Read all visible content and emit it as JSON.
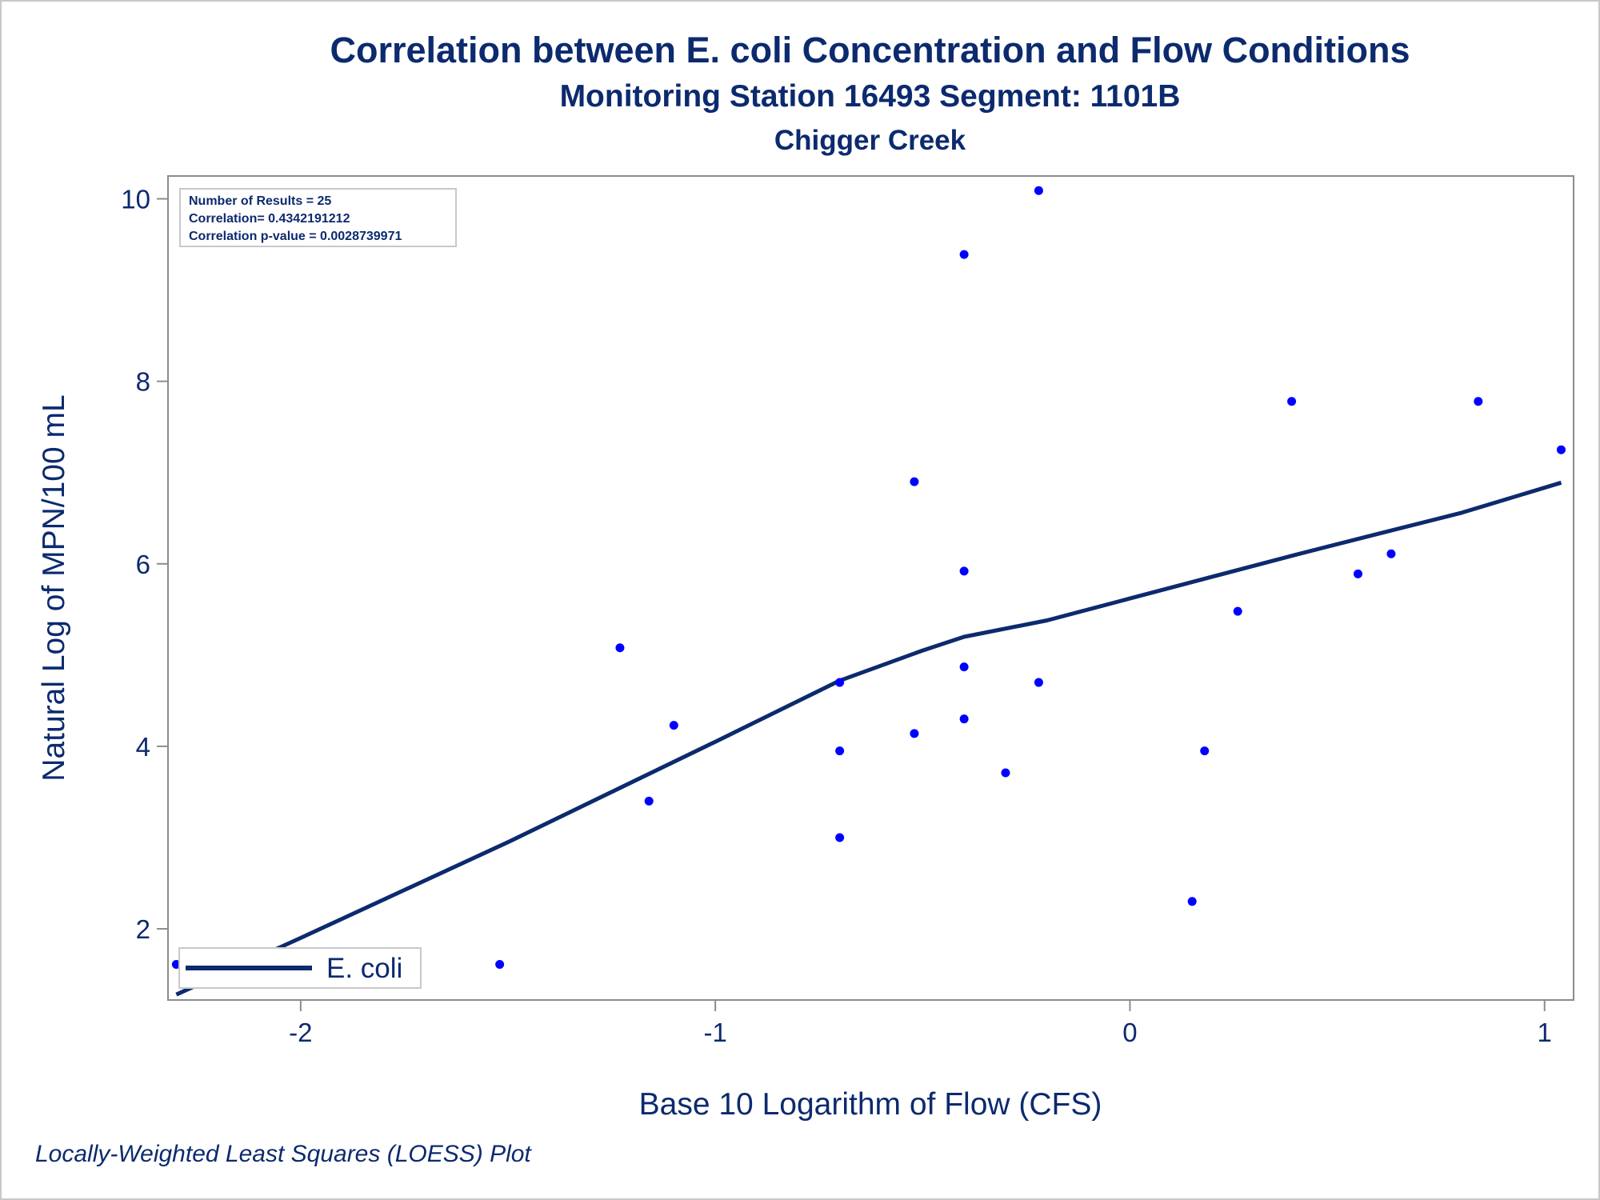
{
  "titles": {
    "title": "Correlation between E. coli Concentration and Flow Conditions",
    "subtitle": "Monitoring Station 16493 Segment: 1101B",
    "subtitle2": "Chigger Creek"
  },
  "footnote": "Locally-Weighted Least Squares (LOESS) Plot",
  "chart_data": {
    "type": "scatter",
    "xlabel": "Base 10 Logarithm of Flow (CFS)",
    "ylabel": "Natural Log of MPN/100 mL",
    "xlim": [
      -2.32,
      1.07
    ],
    "ylim": [
      1.22,
      10.25
    ],
    "xticks": [
      -2,
      -1,
      0,
      1
    ],
    "yticks": [
      2,
      4,
      6,
      8,
      10
    ],
    "grid": false,
    "legend_position": "bottom-left",
    "stats": [
      "Number of Results = 25",
      "Correlation= 0.4342191212",
      "Correlation p-value = 0.0028739971"
    ],
    "points": [
      {
        "x": -2.3,
        "y": 1.61
      },
      {
        "x": -1.52,
        "y": 1.61
      },
      {
        "x": -1.23,
        "y": 5.08
      },
      {
        "x": -1.16,
        "y": 3.4
      },
      {
        "x": -1.1,
        "y": 4.23
      },
      {
        "x": -0.7,
        "y": 4.7
      },
      {
        "x": -0.7,
        "y": 3.95
      },
      {
        "x": -0.7,
        "y": 3.0
      },
      {
        "x": -0.52,
        "y": 6.9
      },
      {
        "x": -0.52,
        "y": 4.14
      },
      {
        "x": -0.4,
        "y": 9.39
      },
      {
        "x": -0.4,
        "y": 5.92
      },
      {
        "x": -0.4,
        "y": 4.87
      },
      {
        "x": -0.4,
        "y": 4.3
      },
      {
        "x": -0.3,
        "y": 3.71
      },
      {
        "x": -0.22,
        "y": 10.09
      },
      {
        "x": -0.22,
        "y": 4.7
      },
      {
        "x": 0.15,
        "y": 2.3
      },
      {
        "x": 0.18,
        "y": 3.95
      },
      {
        "x": 0.26,
        "y": 5.48
      },
      {
        "x": 0.39,
        "y": 7.78
      },
      {
        "x": 0.55,
        "y": 5.89
      },
      {
        "x": 0.63,
        "y": 6.11
      },
      {
        "x": 0.84,
        "y": 7.78
      },
      {
        "x": 1.04,
        "y": 7.25
      }
    ],
    "series": [
      {
        "name": "E. coli",
        "type": "line",
        "color": "#0c2a6e",
        "points": [
          [
            -2.3,
            1.28
          ],
          [
            -2.0,
            1.9
          ],
          [
            -1.5,
            2.95
          ],
          [
            -1.0,
            4.05
          ],
          [
            -0.7,
            4.72
          ],
          [
            -0.5,
            5.05
          ],
          [
            -0.4,
            5.2
          ],
          [
            -0.2,
            5.38
          ],
          [
            0.0,
            5.62
          ],
          [
            0.2,
            5.86
          ],
          [
            0.4,
            6.1
          ],
          [
            0.6,
            6.33
          ],
          [
            0.8,
            6.56
          ],
          [
            1.04,
            6.89
          ]
        ]
      }
    ],
    "marker_color": "#0000ff"
  }
}
